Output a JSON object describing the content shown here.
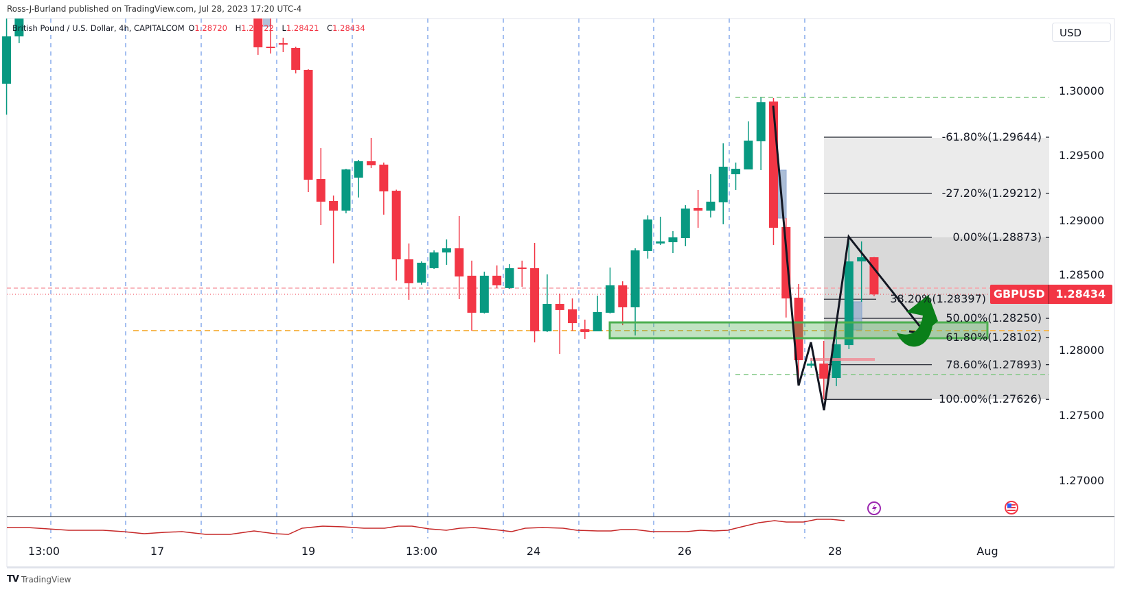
{
  "header": {
    "published": "Ross-J-Burland published on TradingView.com, Jul 28, 2023 17:20 UTC-4"
  },
  "legend": {
    "title": "British Pound / U.S. Dollar, 4h, CAPITALCOM",
    "o_label": "O",
    "o": "1.28720",
    "h_label": "H",
    "h": "1.28722",
    "l_label": "L",
    "l": "1.28421",
    "c_label": "C",
    "c": "1.28434"
  },
  "currency_button": "USD",
  "price_badge": {
    "symbol": "GBPUSD",
    "price": "1.28434"
  },
  "footer": {
    "brand": "TradingView"
  },
  "colors": {
    "up": "#089981",
    "down": "#f23645",
    "zone": "#4caf50",
    "fib_line": "#131722"
  },
  "icons": [
    "lightning-event-icon",
    "us-flag-event-icon",
    "tradingview-logo-icon"
  ],
  "chart_data": {
    "type": "candlestick",
    "title": "British Pound / U.S. Dollar, 4h, CAPITALCOM",
    "ylim": [
      1.2665,
      1.306
    ],
    "y_ticks": [
      "1.30000",
      "1.29500",
      "1.29000",
      "1.28500",
      "1.28000",
      "1.27500",
      "1.27000"
    ],
    "y_tick_values": [
      1.3,
      1.295,
      1.29,
      1.285,
      1.28,
      1.275,
      1.27
    ],
    "x_ticks": [
      "13:00",
      "17",
      "19",
      "13:00",
      "24",
      "26",
      "28",
      "Aug"
    ],
    "grid": false,
    "candles": [
      {
        "i": -24,
        "o": 1.30056,
        "h": 1.30558,
        "l": 1.29818,
        "c": 1.3042
      },
      {
        "i": -23,
        "o": 1.3042,
        "h": 1.3057,
        "l": 1.30368,
        "c": 1.3056
      },
      {
        "i": -4,
        "o": 1.30595,
        "h": 1.3062,
        "l": 1.30278,
        "c": 1.30336
      },
      {
        "i": -3,
        "o": 1.30341,
        "h": 1.30558,
        "l": 1.30288,
        "c": 1.30331
      },
      {
        "i": -2,
        "o": 1.30368,
        "h": 1.3041,
        "l": 1.30299,
        "c": 1.30357
      },
      {
        "i": -1,
        "o": 1.30331,
        "h": 1.30341,
        "l": 1.30135,
        "c": 1.30162
      },
      {
        "i": 0,
        "o": 1.30162,
        "h": 1.30167,
        "l": 1.29222,
        "c": 1.29317
      },
      {
        "i": 1,
        "o": 1.29322,
        "h": 1.2956,
        "l": 1.28968,
        "c": 1.29148
      },
      {
        "i": 2,
        "o": 1.29153,
        "h": 1.29195,
        "l": 1.28673,
        "c": 1.29079
      },
      {
        "i": 3,
        "o": 1.29079,
        "h": 1.29401,
        "l": 1.29058,
        "c": 1.29396
      },
      {
        "i": 4,
        "o": 1.29333,
        "h": 1.2947,
        "l": 1.2918,
        "c": 1.29459
      },
      {
        "i": 5,
        "o": 1.29459,
        "h": 1.29639,
        "l": 1.29407,
        "c": 1.29428
      },
      {
        "i": 6,
        "o": 1.29433,
        "h": 1.29449,
        "l": 1.29048,
        "c": 1.29227
      },
      {
        "i": 7,
        "o": 1.29232,
        "h": 1.2924,
        "l": 1.28541,
        "c": 1.28704
      },
      {
        "i": 8,
        "o": 1.28704,
        "h": 1.28826,
        "l": 1.28393,
        "c": 1.2852
      },
      {
        "i": 9,
        "o": 1.28525,
        "h": 1.28688,
        "l": 1.28509,
        "c": 1.28678
      },
      {
        "i": 10,
        "o": 1.28636,
        "h": 1.28773,
        "l": 1.2863,
        "c": 1.28757
      },
      {
        "i": 11,
        "o": 1.28757,
        "h": 1.28857,
        "l": 1.28662,
        "c": 1.28789
      },
      {
        "i": 12,
        "o": 1.28789,
        "h": 1.29037,
        "l": 1.28398,
        "c": 1.28572
      },
      {
        "i": 13,
        "o": 1.28578,
        "h": 1.28694,
        "l": 1.28155,
        "c": 1.28293
      },
      {
        "i": 14,
        "o": 1.28293,
        "h": 1.28609,
        "l": 1.28287,
        "c": 1.28578
      },
      {
        "i": 15,
        "o": 1.28578,
        "h": 1.28657,
        "l": 1.28483,
        "c": 1.28504
      },
      {
        "i": 16,
        "o": 1.28483,
        "h": 1.28667,
        "l": 1.28477,
        "c": 1.28636
      },
      {
        "i": 17,
        "o": 1.28641,
        "h": 1.28694,
        "l": 1.28493,
        "c": 1.2863
      },
      {
        "i": 18,
        "o": 1.28636,
        "h": 1.28831,
        "l": 1.28065,
        "c": 1.2815
      },
      {
        "i": 19,
        "o": 1.2815,
        "h": 1.28588,
        "l": 1.28145,
        "c": 1.28361
      },
      {
        "i": 20,
        "o": 1.28361,
        "h": 1.2844,
        "l": 1.27976,
        "c": 1.28314
      },
      {
        "i": 21,
        "o": 1.28319,
        "h": 1.28403,
        "l": 1.28155,
        "c": 1.28213
      },
      {
        "i": 22,
        "o": 1.28166,
        "h": 1.2824,
        "l": 1.28092,
        "c": 1.28145
      },
      {
        "i": 23,
        "o": 1.2815,
        "h": 1.28425,
        "l": 1.2815,
        "c": 1.28298
      },
      {
        "i": 24,
        "o": 1.28293,
        "h": 1.28641,
        "l": 1.28287,
        "c": 1.28504
      },
      {
        "i": 25,
        "o": 1.28504,
        "h": 1.28535,
        "l": 1.28197,
        "c": 1.28335
      },
      {
        "i": 26,
        "o": 1.28335,
        "h": 1.28789,
        "l": 1.28118,
        "c": 1.28773
      },
      {
        "i": 27,
        "o": 1.28768,
        "h": 1.29042,
        "l": 1.2871,
        "c": 1.29011
      },
      {
        "i": 28,
        "o": 1.28826,
        "h": 1.29032,
        "l": 1.28815,
        "c": 1.28842
      },
      {
        "i": 29,
        "o": 1.28836,
        "h": 1.28921,
        "l": 1.28752,
        "c": 1.28873
      },
      {
        "i": 30,
        "o": 1.28868,
        "h": 1.29121,
        "l": 1.28805,
        "c": 1.29095
      },
      {
        "i": 31,
        "o": 1.291,
        "h": 1.29238,
        "l": 1.28947,
        "c": 1.29079
      },
      {
        "i": 32,
        "o": 1.29079,
        "h": 1.29359,
        "l": 1.29026,
        "c": 1.29148
      },
      {
        "i": 33,
        "o": 1.29143,
        "h": 1.29597,
        "l": 1.28974,
        "c": 1.29417
      },
      {
        "i": 34,
        "o": 1.29359,
        "h": 1.29449,
        "l": 1.29238,
        "c": 1.29401
      },
      {
        "i": 35,
        "o": 1.29396,
        "h": 1.29766,
        "l": 1.29396,
        "c": 1.29618
      },
      {
        "i": 36,
        "o": 1.29613,
        "h": 1.2995,
        "l": 1.29391,
        "c": 1.29913
      },
      {
        "i": 37,
        "o": 1.29919,
        "h": 1.29945,
        "l": 1.28815,
        "c": 1.28947
      },
      {
        "i": 38,
        "o": 1.28953,
        "h": 1.29021,
        "l": 1.28256,
        "c": 1.28403
      },
      {
        "i": 39,
        "o": 1.28409,
        "h": 1.28514,
        "l": 1.27743,
        "c": 1.27928
      },
      {
        "i": 40,
        "o": 1.27886,
        "h": 1.27944,
        "l": 1.2787,
        "c": 1.27902
      },
      {
        "i": 41,
        "o": 1.27902,
        "h": 1.28076,
        "l": 1.27626,
        "c": 1.27786
      },
      {
        "i": 42,
        "o": 1.27791,
        "h": 1.28155,
        "l": 1.27728,
        "c": 1.2805
      },
      {
        "i": 43,
        "o": 1.28044,
        "h": 1.28873,
        "l": 1.28013,
        "c": 1.28688
      },
      {
        "i": 44,
        "o": 1.28688,
        "h": 1.28842,
        "l": 1.28377,
        "c": 1.2872
      },
      {
        "i": 45,
        "o": 1.2872,
        "h": 1.28722,
        "l": 1.28421,
        "c": 1.28434
      }
    ],
    "fib_levels": [
      {
        "label": "-61.80%(1.29644)",
        "value": 1.29644
      },
      {
        "label": "-27.20%(1.29212)",
        "value": 1.29212
      },
      {
        "label": "0.00%(1.28873)",
        "value": 1.28873
      },
      {
        "label": "38.20%(1.28397)",
        "value": 1.28397
      },
      {
        "label": "50.00%(1.28250)",
        "value": 1.2825
      },
      {
        "label": "61.80%(1.28102)",
        "value": 1.28102
      },
      {
        "label": "78.60%(1.27893)",
        "value": 1.27893
      },
      {
        "label": "100.00%(1.27626)",
        "value": 1.27626
      }
    ],
    "last_price": 1.28434
  }
}
